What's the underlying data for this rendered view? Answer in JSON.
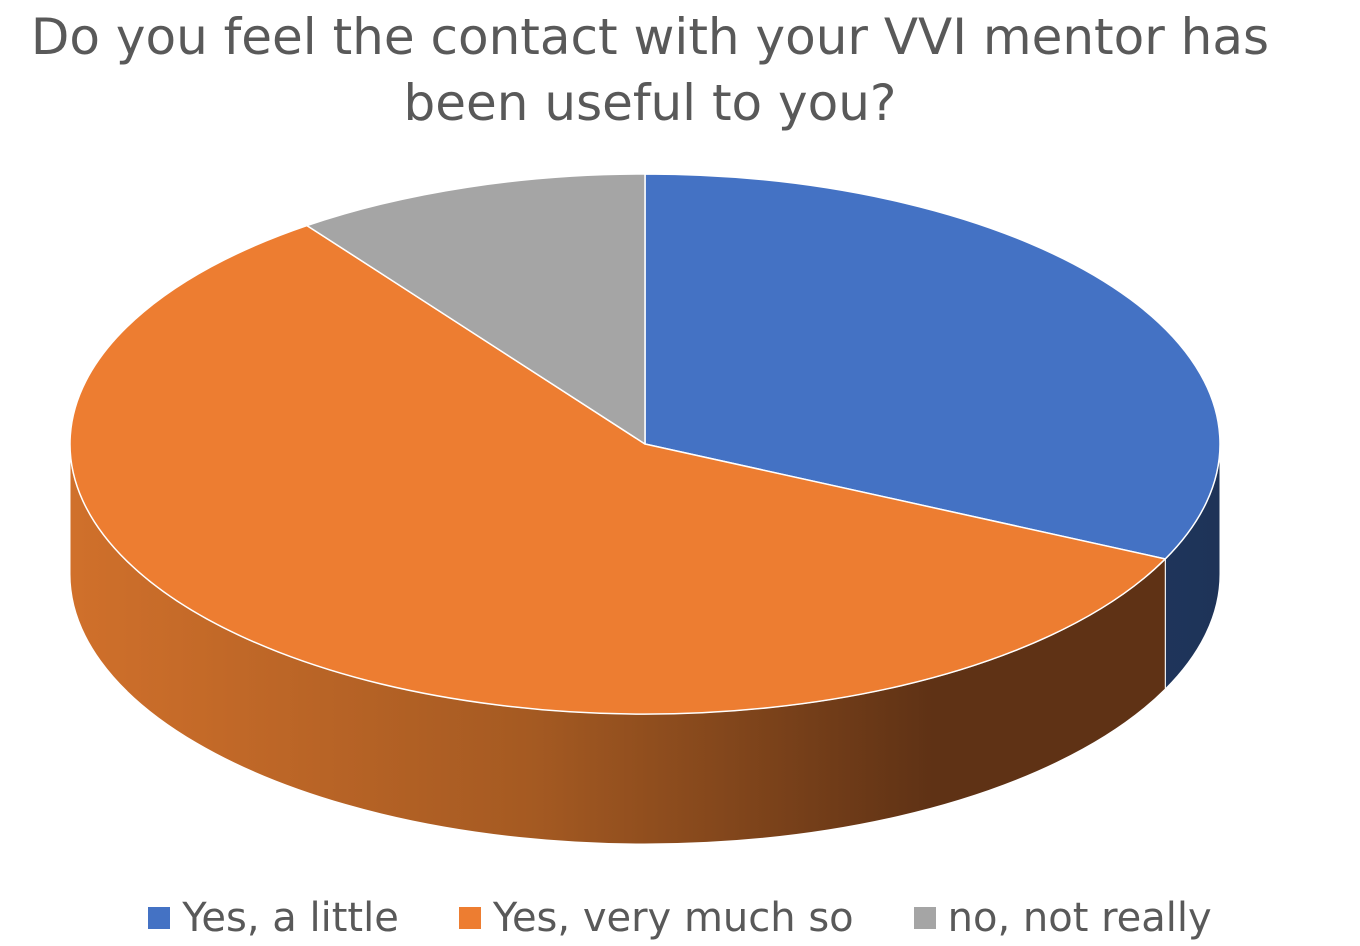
{
  "chart_data": {
    "type": "pie",
    "title": "Do you feel the contact with your VVI mentor has been useful to you?",
    "style": "3d",
    "legend_position": "bottom",
    "series": [
      {
        "name": "Yes, a little",
        "value": 32,
        "color": "#4472C4"
      },
      {
        "name": "Yes, very much so",
        "value": 58,
        "color": "#ED7D31"
      },
      {
        "name": "no, not really",
        "value": 10,
        "color": "#A5A5A5"
      }
    ]
  }
}
